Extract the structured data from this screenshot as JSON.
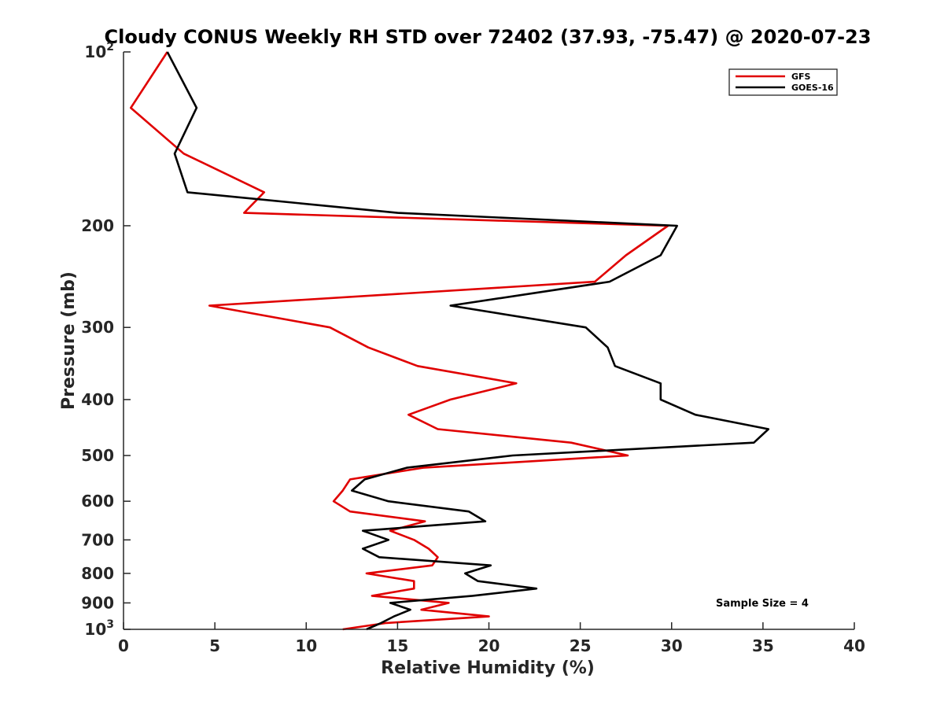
{
  "chart_data": {
    "type": "line",
    "title": "Cloudy CONUS Weekly RH STD over 72402 (37.93, -75.47) @ 2020-07-23",
    "xlabel": "Relative Humidity (%)",
    "ylabel": "Pressure (mb)",
    "xlim": [
      0,
      40
    ],
    "ylim": [
      100,
      1000
    ],
    "y_scale": "log",
    "y_reversed": true,
    "grid": false,
    "legend_position": "top-right",
    "x_ticks": [
      "0",
      "5",
      "10",
      "15",
      "20",
      "25",
      "30",
      "35",
      "40"
    ],
    "y_ticks": [
      {
        "value": 100,
        "base": "10",
        "exp": "2"
      },
      {
        "value": 200,
        "label": "200"
      },
      {
        "value": 300,
        "label": "300"
      },
      {
        "value": 400,
        "label": "400"
      },
      {
        "value": 500,
        "label": "500"
      },
      {
        "value": 600,
        "label": "600"
      },
      {
        "value": 700,
        "label": "700"
      },
      {
        "value": 800,
        "label": "800"
      },
      {
        "value": 900,
        "label": "900"
      },
      {
        "value": 1000,
        "base": "10",
        "exp": "3"
      }
    ],
    "series": [
      {
        "name": "GFS",
        "color": "#e00000",
        "points": [
          {
            "x": 2.4,
            "y": 100
          },
          {
            "x": 0.4,
            "y": 125
          },
          {
            "x": 3.3,
            "y": 150
          },
          {
            "x": 7.7,
            "y": 175
          },
          {
            "x": 6.6,
            "y": 190
          },
          {
            "x": 29.8,
            "y": 200
          },
          {
            "x": 27.5,
            "y": 225
          },
          {
            "x": 25.8,
            "y": 250
          },
          {
            "x": 4.7,
            "y": 275
          },
          {
            "x": 11.3,
            "y": 300
          },
          {
            "x": 13.4,
            "y": 325
          },
          {
            "x": 16.1,
            "y": 350
          },
          {
            "x": 21.5,
            "y": 375
          },
          {
            "x": 17.9,
            "y": 400
          },
          {
            "x": 15.6,
            "y": 425
          },
          {
            "x": 17.2,
            "y": 450
          },
          {
            "x": 24.5,
            "y": 475
          },
          {
            "x": 27.6,
            "y": 500
          },
          {
            "x": 16.4,
            "y": 525
          },
          {
            "x": 12.4,
            "y": 550
          },
          {
            "x": 12.0,
            "y": 575
          },
          {
            "x": 11.5,
            "y": 600
          },
          {
            "x": 12.4,
            "y": 625
          },
          {
            "x": 16.5,
            "y": 650
          },
          {
            "x": 14.6,
            "y": 675
          },
          {
            "x": 15.9,
            "y": 700
          },
          {
            "x": 16.7,
            "y": 725
          },
          {
            "x": 17.2,
            "y": 750
          },
          {
            "x": 16.9,
            "y": 775
          },
          {
            "x": 13.3,
            "y": 800
          },
          {
            "x": 15.9,
            "y": 825
          },
          {
            "x": 15.9,
            "y": 850
          },
          {
            "x": 13.6,
            "y": 875
          },
          {
            "x": 17.8,
            "y": 900
          },
          {
            "x": 16.3,
            "y": 925
          },
          {
            "x": 20.0,
            "y": 950
          },
          {
            "x": 14.4,
            "y": 975
          },
          {
            "x": 12.0,
            "y": 1000
          }
        ]
      },
      {
        "name": "GOES-16",
        "color": "#000000",
        "points": [
          {
            "x": 2.4,
            "y": 100
          },
          {
            "x": 4.0,
            "y": 125
          },
          {
            "x": 2.8,
            "y": 150
          },
          {
            "x": 3.5,
            "y": 175
          },
          {
            "x": 15.0,
            "y": 190
          },
          {
            "x": 30.3,
            "y": 200
          },
          {
            "x": 29.4,
            "y": 225
          },
          {
            "x": 26.6,
            "y": 250
          },
          {
            "x": 17.9,
            "y": 275
          },
          {
            "x": 25.3,
            "y": 300
          },
          {
            "x": 26.5,
            "y": 325
          },
          {
            "x": 26.9,
            "y": 350
          },
          {
            "x": 29.4,
            "y": 375
          },
          {
            "x": 29.4,
            "y": 400
          },
          {
            "x": 31.3,
            "y": 425
          },
          {
            "x": 35.3,
            "y": 450
          },
          {
            "x": 34.5,
            "y": 475
          },
          {
            "x": 21.3,
            "y": 500
          },
          {
            "x": 15.5,
            "y": 525
          },
          {
            "x": 13.2,
            "y": 550
          },
          {
            "x": 12.5,
            "y": 575
          },
          {
            "x": 14.5,
            "y": 600
          },
          {
            "x": 18.9,
            "y": 625
          },
          {
            "x": 19.8,
            "y": 650
          },
          {
            "x": 13.1,
            "y": 675
          },
          {
            "x": 14.5,
            "y": 700
          },
          {
            "x": 13.1,
            "y": 725
          },
          {
            "x": 14.0,
            "y": 750
          },
          {
            "x": 20.1,
            "y": 775
          },
          {
            "x": 18.7,
            "y": 800
          },
          {
            "x": 19.4,
            "y": 825
          },
          {
            "x": 22.6,
            "y": 850
          },
          {
            "x": 19.1,
            "y": 875
          },
          {
            "x": 14.6,
            "y": 900
          },
          {
            "x": 15.7,
            "y": 925
          },
          {
            "x": 14.8,
            "y": 950
          },
          {
            "x": 14.1,
            "y": 975
          },
          {
            "x": 13.3,
            "y": 1000
          }
        ]
      }
    ],
    "annotation": "Sample Size = 4"
  }
}
